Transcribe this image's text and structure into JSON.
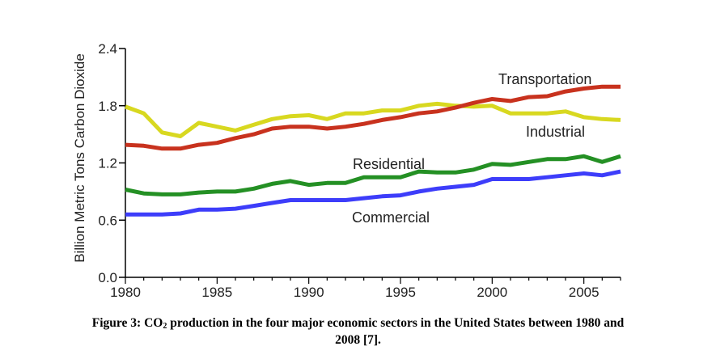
{
  "chart_data": {
    "type": "line",
    "title": "",
    "xlabel": "",
    "ylabel": "Billion Metric Tons Carbon Dioxide",
    "xlim": [
      1980,
      2007
    ],
    "ylim": [
      0,
      2.4
    ],
    "x_ticks": [
      1980,
      1985,
      1990,
      1995,
      2000,
      2005
    ],
    "y_ticks": [
      "0.0",
      "0.6",
      "1.2",
      "1.8",
      "2.4"
    ],
    "grid": false,
    "legend": "none (series labeled inline)",
    "x": [
      1980,
      1981,
      1982,
      1983,
      1984,
      1985,
      1986,
      1987,
      1988,
      1989,
      1990,
      1991,
      1992,
      1993,
      1994,
      1995,
      1996,
      1997,
      1998,
      1999,
      2000,
      2001,
      2002,
      2003,
      2004,
      2005,
      2006,
      2007
    ],
    "series": [
      {
        "name": "Transportation",
        "color": "#c8321e",
        "values": [
          1.39,
          1.38,
          1.35,
          1.35,
          1.39,
          1.41,
          1.46,
          1.5,
          1.56,
          1.58,
          1.58,
          1.56,
          1.58,
          1.61,
          1.65,
          1.68,
          1.72,
          1.74,
          1.78,
          1.83,
          1.87,
          1.85,
          1.89,
          1.9,
          1.95,
          1.98,
          2.0,
          2.0
        ]
      },
      {
        "name": "Industrial",
        "color": "#d8d820",
        "values": [
          1.79,
          1.72,
          1.52,
          1.48,
          1.62,
          1.58,
          1.54,
          1.6,
          1.66,
          1.69,
          1.7,
          1.66,
          1.72,
          1.72,
          1.75,
          1.75,
          1.8,
          1.82,
          1.8,
          1.79,
          1.8,
          1.72,
          1.72,
          1.72,
          1.74,
          1.68,
          1.66,
          1.65
        ]
      },
      {
        "name": "Residential",
        "color": "#249024",
        "values": [
          0.92,
          0.88,
          0.87,
          0.87,
          0.89,
          0.9,
          0.9,
          0.93,
          0.98,
          1.01,
          0.97,
          0.99,
          0.99,
          1.05,
          1.05,
          1.05,
          1.11,
          1.1,
          1.1,
          1.13,
          1.19,
          1.18,
          1.21,
          1.24,
          1.24,
          1.27,
          1.21,
          1.27
        ]
      },
      {
        "name": "Commercial",
        "color": "#3d3dfa",
        "values": [
          0.66,
          0.66,
          0.66,
          0.67,
          0.71,
          0.71,
          0.72,
          0.75,
          0.78,
          0.81,
          0.81,
          0.81,
          0.81,
          0.83,
          0.85,
          0.86,
          0.9,
          0.93,
          0.95,
          0.97,
          1.03,
          1.03,
          1.03,
          1.05,
          1.07,
          1.09,
          1.07,
          1.11
        ]
      }
    ]
  },
  "caption": {
    "prefix": "Figure 3: CO",
    "subscript": "2",
    "line1_rest": " production in the four major economic sectors in the United States between 1980 and",
    "line2": "2008 [7]."
  }
}
